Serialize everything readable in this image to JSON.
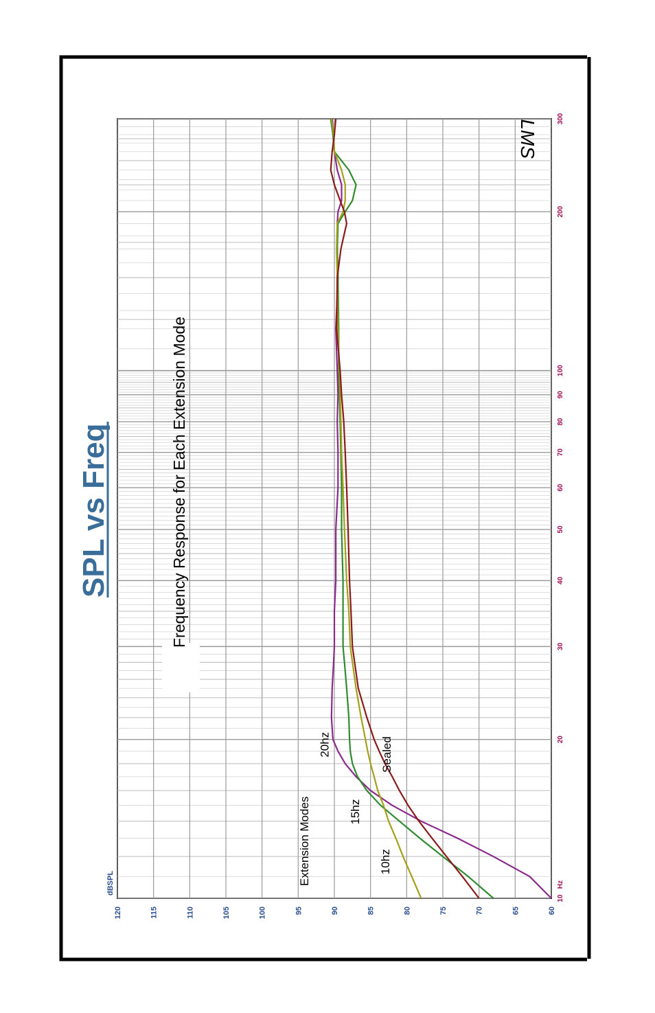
{
  "chart_data": {
    "type": "line",
    "title": "SPL vs Freq",
    "subtitle": "Frequency Response for Each Extension Mode",
    "ylabel": "dBSPL",
    "xunit": "Hz",
    "watermark": "LMS",
    "x_scale": "log",
    "xlim": [
      10,
      300
    ],
    "ylim": [
      60,
      120
    ],
    "grid": true,
    "x_tick_labels": [
      "10",
      "20",
      "30",
      "40",
      "50",
      "60",
      "70",
      "80",
      "90",
      "100",
      "200",
      "300"
    ],
    "y_tick_labels": [
      "60",
      "65",
      "70",
      "75",
      "80",
      "85",
      "90",
      "95",
      "100",
      "105",
      "110",
      "115",
      "120"
    ],
    "legend_title": "Extension Modes",
    "x": [
      10,
      11,
      12,
      13,
      14,
      15,
      16,
      17,
      18,
      19,
      20,
      22,
      25,
      28,
      30,
      35,
      40,
      50,
      60,
      70,
      80,
      90,
      100,
      120,
      150,
      170,
      190,
      200,
      210,
      225,
      240,
      260,
      280,
      300
    ],
    "series": [
      {
        "name": "20hz",
        "color": "#8b2a8b",
        "values": [
          60,
          63,
          68,
          73,
          78,
          82,
          85,
          87,
          88.5,
          89.5,
          90.2,
          90.4,
          90.3,
          90.1,
          90,
          90,
          89.8,
          89.8,
          89.5,
          89.5,
          89.6,
          89.5,
          89.6,
          89.8,
          89.5,
          89.6,
          89.6,
          89.5,
          89,
          89,
          89.6,
          90,
          90.1,
          90.3
        ]
      },
      {
        "name": "15hz",
        "color": "#2e8b2e",
        "values": [
          68,
          71.5,
          75,
          78.2,
          81,
          83.6,
          85.5,
          86.8,
          87.5,
          87.8,
          87.9,
          88,
          88.3,
          88.6,
          88.8,
          88.8,
          88.8,
          89,
          89,
          89.1,
          89.2,
          89.3,
          89.4,
          89.4,
          89.5,
          89.6,
          89.5,
          88.5,
          87.5,
          87,
          88,
          90,
          90.2,
          90.5
        ]
      },
      {
        "name": "10hz",
        "color": "#a3a019",
        "values": [
          78,
          79.3,
          80.5,
          81.5,
          82.5,
          83.2,
          84,
          84.5,
          85,
          85.4,
          85.7,
          86.3,
          87,
          87.5,
          87.8,
          88,
          88.3,
          88.6,
          88.8,
          89,
          89.1,
          89.2,
          89.3,
          89.5,
          89.6,
          89.7,
          89.6,
          88.8,
          88.5,
          88.5,
          89,
          90,
          90.1,
          90.4
        ]
      },
      {
        "name": "Sealed",
        "color": "#8b1a1a",
        "values": [
          70,
          72.3,
          74.5,
          76.5,
          78.3,
          79.8,
          81,
          82,
          83,
          83.8,
          84.5,
          85.5,
          86.7,
          87.2,
          87.5,
          87.7,
          87.9,
          88.1,
          88.3,
          88.5,
          88.7,
          89,
          89.2,
          89.7,
          89.6,
          89.1,
          88.3,
          88.6,
          89.2,
          90,
          90.5,
          90.3,
          90,
          89.8
        ]
      }
    ]
  }
}
